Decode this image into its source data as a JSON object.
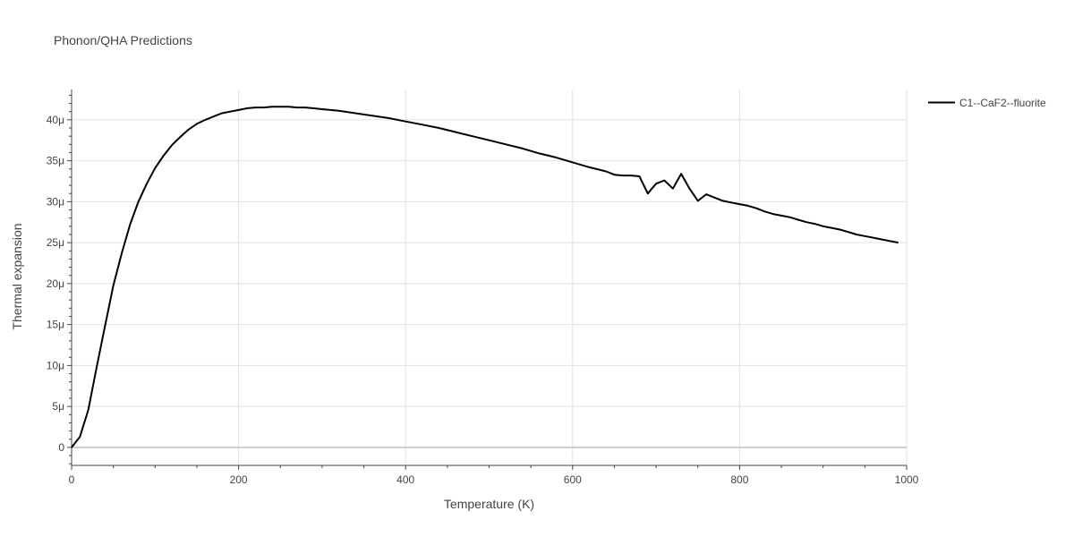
{
  "chart_data": {
    "type": "line",
    "title": "Phonon/QHA Predictions",
    "xlabel": "Temperature (K)",
    "ylabel": "Thermal expansion",
    "xlim": [
      0,
      1000
    ],
    "ylim": [
      -2.2e-06,
      4.37e-05
    ],
    "xticks": [
      0,
      200,
      400,
      600,
      800,
      1000
    ],
    "xtick_labels": [
      "0",
      "200",
      "400",
      "600",
      "800",
      "1000"
    ],
    "yticks": [
      0,
      5e-06,
      1e-05,
      1.5e-05,
      2e-05,
      2.5e-05,
      3e-05,
      3.5e-05,
      4e-05
    ],
    "ytick_labels": [
      "0",
      "5μ",
      "10μ",
      "15μ",
      "20μ",
      "25μ",
      "30μ",
      "35μ",
      "40μ"
    ],
    "grid": true,
    "legend_position": "top-right",
    "colors": {
      "series": "#000000",
      "grid": "#e1e1e1",
      "zeroline": "#cccccc",
      "text": "#444444"
    },
    "series": [
      {
        "name": "C1--CaF2--fluorite",
        "x": [
          0,
          10,
          20,
          30,
          40,
          50,
          60,
          70,
          80,
          90,
          100,
          110,
          120,
          130,
          140,
          150,
          160,
          170,
          180,
          190,
          200,
          210,
          220,
          230,
          240,
          250,
          260,
          270,
          280,
          290,
          300,
          320,
          340,
          360,
          380,
          400,
          420,
          440,
          460,
          480,
          500,
          520,
          540,
          560,
          580,
          600,
          620,
          640,
          650,
          660,
          670,
          680,
          690,
          700,
          710,
          720,
          730,
          740,
          750,
          760,
          770,
          780,
          790,
          800,
          810,
          820,
          830,
          840,
          850,
          860,
          870,
          880,
          890,
          900,
          910,
          920,
          930,
          940,
          950,
          960,
          970,
          980,
          990
        ],
        "y": [
          0,
          1.3e-06,
          4.6e-06,
          9.8e-06,
          1.48e-05,
          1.98e-05,
          2.37e-05,
          2.72e-05,
          3e-05,
          3.22e-05,
          3.41e-05,
          3.56e-05,
          3.69e-05,
          3.79e-05,
          3.88e-05,
          3.95e-05,
          4e-05,
          4.04e-05,
          4.08e-05,
          4.1e-05,
          4.12e-05,
          4.14e-05,
          4.15e-05,
          4.15e-05,
          4.16e-05,
          4.16e-05,
          4.16e-05,
          4.15e-05,
          4.15e-05,
          4.14e-05,
          4.13e-05,
          4.11e-05,
          4.08e-05,
          4.05e-05,
          4.02e-05,
          3.98e-05,
          3.94e-05,
          3.9e-05,
          3.85e-05,
          3.8e-05,
          3.75e-05,
          3.7e-05,
          3.65e-05,
          3.59e-05,
          3.54e-05,
          3.48e-05,
          3.42e-05,
          3.37e-05,
          3.33e-05,
          3.32e-05,
          3.32e-05,
          3.31e-05,
          3.1e-05,
          3.22e-05,
          3.26e-05,
          3.16e-05,
          3.34e-05,
          3.16e-05,
          3.01e-05,
          3.09e-05,
          3.05e-05,
          3.01e-05,
          2.99e-05,
          2.97e-05,
          2.95e-05,
          2.92e-05,
          2.88e-05,
          2.85e-05,
          2.83e-05,
          2.81e-05,
          2.78e-05,
          2.75e-05,
          2.73e-05,
          2.7e-05,
          2.68e-05,
          2.66e-05,
          2.63e-05,
          2.6e-05,
          2.58e-05,
          2.56e-05,
          2.54e-05,
          2.52e-05,
          2.5e-05
        ]
      }
    ]
  }
}
